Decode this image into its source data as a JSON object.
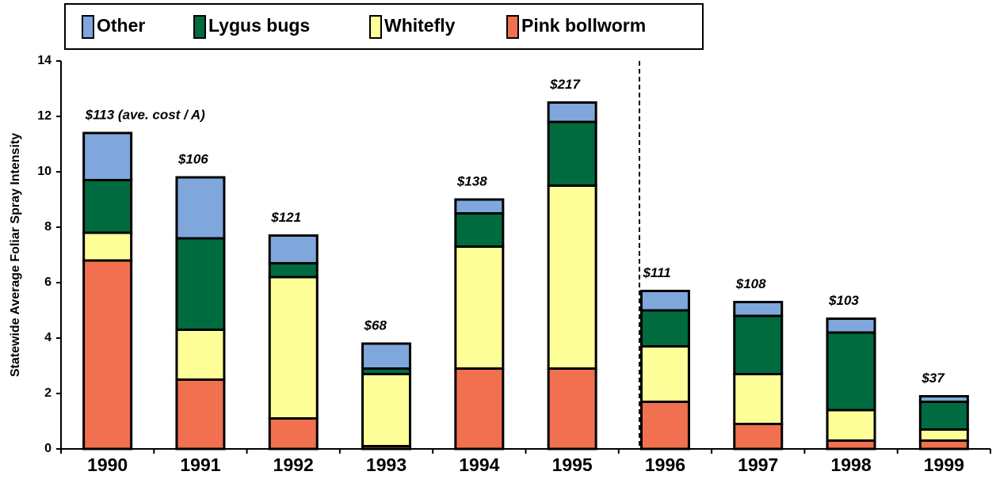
{
  "chart_data": {
    "type": "stacked_bar",
    "y_label": "Statewide Average Foliar  Spray Intensity",
    "categories": [
      "1990",
      "1991",
      "1992",
      "1993",
      "1994",
      "1995",
      "1996",
      "1997",
      "1998",
      "1999"
    ],
    "series": [
      {
        "name": "Pink bollworm",
        "color": "#f07050",
        "values": [
          6.8,
          2.5,
          1.1,
          0.1,
          2.9,
          2.9,
          1.7,
          0.9,
          0.3,
          0.3
        ]
      },
      {
        "name": "Whitefly",
        "color": "#ffff99",
        "values": [
          1.0,
          1.8,
          5.1,
          2.6,
          4.4,
          6.6,
          2.0,
          1.8,
          1.1,
          0.4
        ]
      },
      {
        "name": "Lygus bugs",
        "color": "#006b3f",
        "values": [
          1.9,
          3.3,
          0.5,
          0.2,
          1.2,
          2.3,
          1.3,
          2.1,
          2.8,
          1.0
        ]
      },
      {
        "name": "Other",
        "color": "#7fa7dc",
        "values": [
          1.7,
          2.2,
          1.0,
          0.9,
          0.5,
          0.7,
          0.7,
          0.5,
          0.5,
          0.2
        ]
      }
    ],
    "annotations": [
      "$113 (ave. cost / A)",
      "$106",
      "$121",
      "$68",
      "$138",
      "$217",
      "$111",
      "$108",
      "$103",
      "$37"
    ],
    "ylim": [
      0,
      14
    ],
    "yticks": [
      0,
      2,
      4,
      6,
      8,
      10,
      12,
      14
    ]
  }
}
